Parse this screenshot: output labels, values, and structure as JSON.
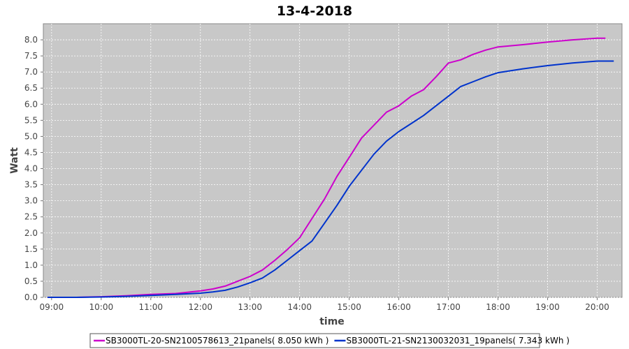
{
  "chart_data": {
    "type": "line",
    "title": "13-4-2018",
    "xlabel": "time",
    "ylabel": "Watt",
    "x_ticks": [
      "09:00",
      "10:00",
      "11:00",
      "12:00",
      "13:00",
      "14:00",
      "15:00",
      "16:00",
      "17:00",
      "18:00",
      "19:00",
      "20:00"
    ],
    "y_ticks": [
      "0.0",
      "0.5",
      "1.0",
      "1.5",
      "2.0",
      "2.5",
      "3.0",
      "3.5",
      "4.0",
      "4.5",
      "5.0",
      "5.5",
      "6.0",
      "6.5",
      "7.0",
      "7.5",
      "8.0"
    ],
    "xlim": [
      "08:50",
      "20:30"
    ],
    "ylim": [
      0,
      8.5
    ],
    "grid": true,
    "legend_position": "bottom",
    "series": [
      {
        "name": "SB3000TL-20-SN2100578613_21panels( 8.050 kWh )",
        "color": "#cc00cc",
        "points": [
          [
            "08:55",
            0.0
          ],
          [
            "09:30",
            0.0
          ],
          [
            "10:00",
            0.02
          ],
          [
            "10:30",
            0.05
          ],
          [
            "11:00",
            0.09
          ],
          [
            "11:30",
            0.12
          ],
          [
            "12:00",
            0.2
          ],
          [
            "12:15",
            0.26
          ],
          [
            "12:30",
            0.35
          ],
          [
            "12:45",
            0.5
          ],
          [
            "13:00",
            0.65
          ],
          [
            "13:15",
            0.85
          ],
          [
            "13:30",
            1.15
          ],
          [
            "13:45",
            1.48
          ],
          [
            "14:00",
            1.85
          ],
          [
            "14:15",
            2.45
          ],
          [
            "14:30",
            3.05
          ],
          [
            "14:45",
            3.75
          ],
          [
            "15:00",
            4.35
          ],
          [
            "15:15",
            4.95
          ],
          [
            "15:30",
            5.35
          ],
          [
            "15:45",
            5.75
          ],
          [
            "16:00",
            5.95
          ],
          [
            "16:15",
            6.25
          ],
          [
            "16:30",
            6.45
          ],
          [
            "16:45",
            6.85
          ],
          [
            "17:00",
            7.28
          ],
          [
            "17:15",
            7.38
          ],
          [
            "17:30",
            7.55
          ],
          [
            "17:45",
            7.68
          ],
          [
            "18:00",
            7.78
          ],
          [
            "18:30",
            7.85
          ],
          [
            "19:00",
            7.93
          ],
          [
            "19:30",
            8.0
          ],
          [
            "20:00",
            8.05
          ],
          [
            "20:10",
            8.05
          ]
        ]
      },
      {
        "name": "SB3000TL-21-SN2130032031_19panels( 7.343 kWh )",
        "color": "#0033cc",
        "points": [
          [
            "08:55",
            0.0
          ],
          [
            "09:30",
            0.0
          ],
          [
            "10:00",
            0.01
          ],
          [
            "10:30",
            0.03
          ],
          [
            "11:00",
            0.06
          ],
          [
            "11:30",
            0.09
          ],
          [
            "12:00",
            0.13
          ],
          [
            "12:15",
            0.17
          ],
          [
            "12:30",
            0.22
          ],
          [
            "12:45",
            0.32
          ],
          [
            "13:00",
            0.45
          ],
          [
            "13:15",
            0.6
          ],
          [
            "13:30",
            0.85
          ],
          [
            "13:45",
            1.15
          ],
          [
            "14:00",
            1.45
          ],
          [
            "14:15",
            1.75
          ],
          [
            "14:30",
            2.3
          ],
          [
            "14:45",
            2.85
          ],
          [
            "15:00",
            3.45
          ],
          [
            "15:15",
            3.95
          ],
          [
            "15:30",
            4.45
          ],
          [
            "15:45",
            4.85
          ],
          [
            "16:00",
            5.15
          ],
          [
            "16:15",
            5.4
          ],
          [
            "16:30",
            5.65
          ],
          [
            "16:45",
            5.95
          ],
          [
            "17:00",
            6.25
          ],
          [
            "17:15",
            6.55
          ],
          [
            "17:30",
            6.7
          ],
          [
            "17:45",
            6.85
          ],
          [
            "18:00",
            6.98
          ],
          [
            "18:30",
            7.1
          ],
          [
            "19:00",
            7.2
          ],
          [
            "19:30",
            7.28
          ],
          [
            "20:00",
            7.34
          ],
          [
            "20:20",
            7.34
          ]
        ]
      }
    ]
  }
}
